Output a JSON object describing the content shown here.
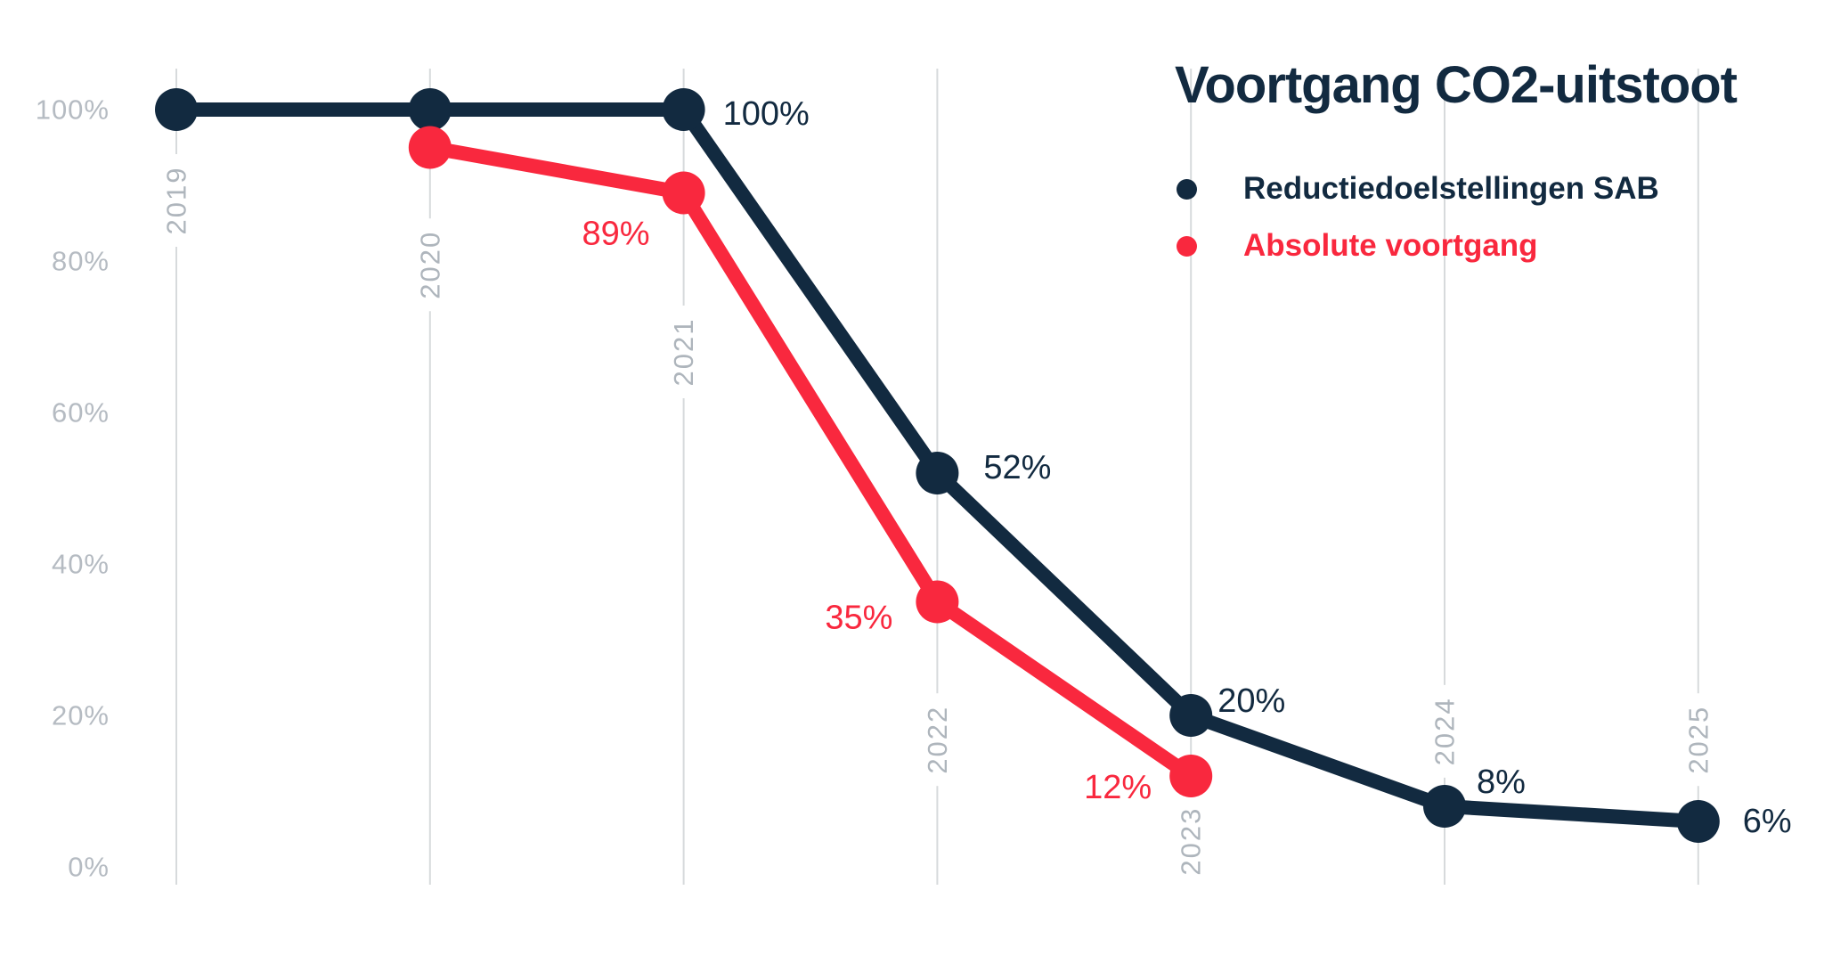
{
  "title": "Voortgang CO2-uitstoot",
  "colors": {
    "navy": "#122A40",
    "red": "#F9283E",
    "tick_gray": "#B5BBC2",
    "year_gray": "#AEB5BC",
    "gridline": "#D7DADC",
    "background": "#FFFFFF"
  },
  "legend": {
    "items": [
      {
        "label": "Reductiedoelstellingen SAB",
        "color": "#122A40"
      },
      {
        "label": "Absolute voortgang",
        "color": "#F9283E"
      }
    ]
  },
  "chart_data": {
    "type": "line",
    "title": "Voortgang CO2-uitstoot",
    "categories": [
      "2019",
      "2020",
      "2021",
      "2022",
      "2023",
      "2024",
      "2025"
    ],
    "category_label_center_pct": [
      88,
      79.5,
      68,
      16.8,
      3.4,
      17.9,
      16.8
    ],
    "y_ticks": [
      "100%",
      "80%",
      "60%",
      "40%",
      "20%",
      "0%"
    ],
    "y_tick_values": [
      100,
      80,
      60,
      40,
      20,
      0
    ],
    "ylim": [
      0,
      100
    ],
    "grid": "vertical-only",
    "legend_position": "top-right",
    "series": [
      {
        "name": "Reductiedoelstellingen SAB",
        "color": "#122A40",
        "points": [
          {
            "category": "2019",
            "value": 100
          },
          {
            "category": "2020",
            "value": 100
          },
          {
            "category": "2021",
            "value": 100,
            "label": "100%",
            "label_side": "right",
            "label_dx": 44,
            "label_dy": 5
          },
          {
            "category": "2022",
            "value": 52,
            "label": "52%",
            "label_side": "right",
            "label_dx": 52,
            "label_dy": -6
          },
          {
            "category": "2023",
            "value": 20,
            "label": "20%",
            "label_side": "right",
            "label_dx": 30,
            "label_dy": -16
          },
          {
            "category": "2024",
            "value": 8,
            "label": "8%",
            "label_side": "right",
            "label_dx": 36,
            "label_dy": -27
          },
          {
            "category": "2025",
            "value": 6,
            "label": "6%",
            "label_side": "right",
            "label_dx": 50,
            "label_dy": 0
          }
        ]
      },
      {
        "name": "Absolute voortgang",
        "color": "#F9283E",
        "points": [
          {
            "category": "2020",
            "value": 95
          },
          {
            "category": "2021",
            "value": 89,
            "label": "89%",
            "label_side": "left",
            "label_dx": -38,
            "label_dy": 46
          },
          {
            "category": "2022",
            "value": 35,
            "label": "35%",
            "label_side": "left",
            "label_dx": -50,
            "label_dy": 18
          },
          {
            "category": "2023",
            "value": 12,
            "label": "12%",
            "label_side": "left",
            "label_dx": -44,
            "label_dy": 13
          }
        ]
      }
    ]
  }
}
